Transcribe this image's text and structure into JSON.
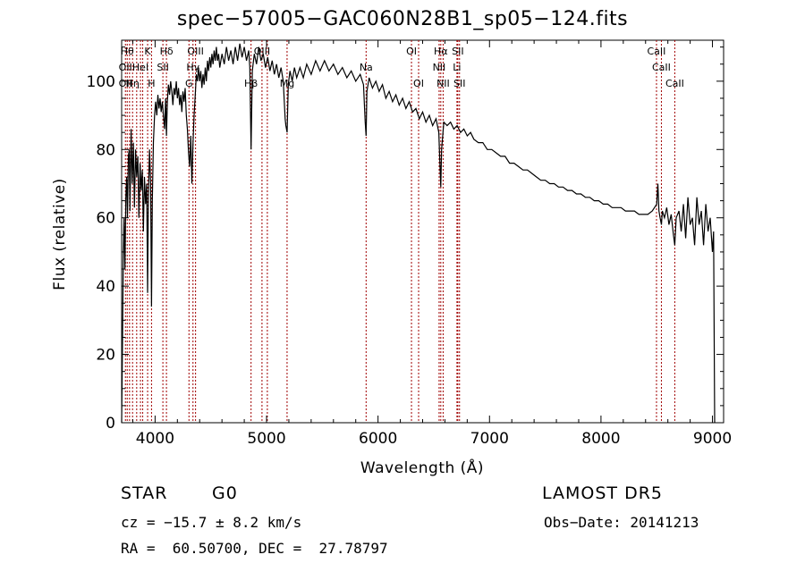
{
  "chart_data": {
    "type": "line",
    "title": "spec−57005−GAC060N28B1_sp05−124.fits",
    "xlabel": "Wavelength (Å)",
    "ylabel": "Flux (relative)",
    "xlim": [
      3700,
      9100
    ],
    "ylim": [
      0,
      112
    ],
    "x_ticks": [
      4000,
      5000,
      6000,
      7000,
      8000,
      9000
    ],
    "y_ticks": [
      0,
      20,
      40,
      60,
      80,
      100
    ],
    "grid": false,
    "series": [
      {
        "color": "#000000",
        "points": [
          [
            3700,
            0
          ],
          [
            3708,
            25
          ],
          [
            3715,
            50
          ],
          [
            3722,
            60
          ],
          [
            3730,
            45
          ],
          [
            3738,
            66
          ],
          [
            3745,
            72
          ],
          [
            3752,
            60
          ],
          [
            3760,
            78
          ],
          [
            3768,
            80
          ],
          [
            3775,
            62
          ],
          [
            3785,
            86
          ],
          [
            3795,
            70
          ],
          [
            3805,
            82
          ],
          [
            3815,
            63
          ],
          [
            3825,
            80
          ],
          [
            3835,
            72
          ],
          [
            3845,
            78
          ],
          [
            3855,
            60
          ],
          [
            3865,
            76
          ],
          [
            3875,
            68
          ],
          [
            3885,
            74
          ],
          [
            3895,
            56
          ],
          [
            3905,
            72
          ],
          [
            3915,
            64
          ],
          [
            3925,
            70
          ],
          [
            3933,
            38
          ],
          [
            3940,
            66
          ],
          [
            3950,
            80
          ],
          [
            3960,
            70
          ],
          [
            3968,
            34
          ],
          [
            3975,
            65
          ],
          [
            3985,
            82
          ],
          [
            3995,
            90
          ],
          [
            4005,
            94
          ],
          [
            4015,
            90
          ],
          [
            4025,
            96
          ],
          [
            4035,
            92
          ],
          [
            4045,
            95
          ],
          [
            4055,
            91
          ],
          [
            4065,
            94
          ],
          [
            4075,
            90
          ],
          [
            4085,
            86
          ],
          [
            4095,
            95
          ],
          [
            4102,
            84
          ],
          [
            4110,
            94
          ],
          [
            4120,
            99
          ],
          [
            4130,
            96
          ],
          [
            4140,
            100
          ],
          [
            4150,
            97
          ],
          [
            4160,
            93
          ],
          [
            4170,
            98
          ],
          [
            4180,
            96
          ],
          [
            4190,
            100
          ],
          [
            4200,
            95
          ],
          [
            4210,
            98
          ],
          [
            4220,
            93
          ],
          [
            4230,
            96
          ],
          [
            4240,
            91
          ],
          [
            4250,
            97
          ],
          [
            4260,
            94
          ],
          [
            4270,
            98
          ],
          [
            4280,
            90
          ],
          [
            4290,
            86
          ],
          [
            4300,
            79
          ],
          [
            4310,
            75
          ],
          [
            4320,
            84
          ],
          [
            4330,
            70
          ],
          [
            4340,
            82
          ],
          [
            4350,
            90
          ],
          [
            4360,
            96
          ],
          [
            4370,
            102
          ],
          [
            4380,
            100
          ],
          [
            4390,
            104
          ],
          [
            4400,
            100
          ],
          [
            4410,
            103
          ],
          [
            4420,
            98
          ],
          [
            4430,
            102
          ],
          [
            4440,
            99
          ],
          [
            4450,
            104
          ],
          [
            4460,
            100
          ],
          [
            4470,
            106
          ],
          [
            4480,
            103
          ],
          [
            4490,
            107
          ],
          [
            4500,
            104
          ],
          [
            4510,
            108
          ],
          [
            4520,
            105
          ],
          [
            4530,
            109
          ],
          [
            4540,
            106
          ],
          [
            4550,
            110
          ],
          [
            4560,
            106
          ],
          [
            4570,
            108
          ],
          [
            4580,
            104
          ],
          [
            4600,
            108
          ],
          [
            4620,
            105
          ],
          [
            4640,
            110
          ],
          [
            4660,
            106
          ],
          [
            4680,
            109
          ],
          [
            4700,
            105
          ],
          [
            4720,
            110
          ],
          [
            4740,
            106
          ],
          [
            4760,
            111
          ],
          [
            4780,
            107
          ],
          [
            4800,
            110
          ],
          [
            4820,
            106
          ],
          [
            4840,
            109
          ],
          [
            4850,
            104
          ],
          [
            4861,
            80
          ],
          [
            4872,
            103
          ],
          [
            4890,
            108
          ],
          [
            4910,
            105
          ],
          [
            4930,
            110
          ],
          [
            4950,
            106
          ],
          [
            4970,
            108
          ],
          [
            4990,
            104
          ],
          [
            5010,
            107
          ],
          [
            5030,
            103
          ],
          [
            5050,
            106
          ],
          [
            5070,
            102
          ],
          [
            5090,
            105
          ],
          [
            5110,
            101
          ],
          [
            5130,
            104
          ],
          [
            5150,
            100
          ],
          [
            5167,
            89
          ],
          [
            5173,
            87
          ],
          [
            5184,
            85
          ],
          [
            5195,
            99
          ],
          [
            5210,
            103
          ],
          [
            5230,
            100
          ],
          [
            5250,
            104
          ],
          [
            5270,
            101
          ],
          [
            5300,
            104
          ],
          [
            5330,
            101
          ],
          [
            5360,
            105
          ],
          [
            5400,
            102
          ],
          [
            5440,
            106
          ],
          [
            5480,
            103
          ],
          [
            5520,
            106
          ],
          [
            5560,
            103
          ],
          [
            5600,
            105
          ],
          [
            5640,
            102
          ],
          [
            5680,
            104
          ],
          [
            5720,
            101
          ],
          [
            5760,
            103
          ],
          [
            5800,
            100
          ],
          [
            5840,
            102
          ],
          [
            5870,
            99
          ],
          [
            5885,
            88
          ],
          [
            5893,
            84
          ],
          [
            5900,
            97
          ],
          [
            5920,
            101
          ],
          [
            5950,
            98
          ],
          [
            5980,
            100
          ],
          [
            6010,
            97
          ],
          [
            6040,
            99
          ],
          [
            6070,
            95
          ],
          [
            6100,
            97
          ],
          [
            6130,
            94
          ],
          [
            6160,
            96
          ],
          [
            6190,
            93
          ],
          [
            6220,
            95
          ],
          [
            6250,
            92
          ],
          [
            6280,
            94
          ],
          [
            6310,
            91
          ],
          [
            6340,
            92
          ],
          [
            6370,
            89
          ],
          [
            6400,
            91
          ],
          [
            6430,
            88
          ],
          [
            6460,
            90
          ],
          [
            6490,
            87
          ],
          [
            6520,
            89
          ],
          [
            6545,
            85
          ],
          [
            6555,
            76
          ],
          [
            6563,
            69
          ],
          [
            6570,
            80
          ],
          [
            6590,
            88
          ],
          [
            6620,
            87
          ],
          [
            6650,
            88
          ],
          [
            6680,
            86
          ],
          [
            6710,
            87
          ],
          [
            6740,
            85
          ],
          [
            6770,
            86
          ],
          [
            6800,
            84
          ],
          [
            6830,
            85
          ],
          [
            6860,
            83
          ],
          [
            6900,
            82
          ],
          [
            6940,
            82
          ],
          [
            6980,
            80
          ],
          [
            7020,
            80
          ],
          [
            7060,
            79
          ],
          [
            7100,
            78
          ],
          [
            7140,
            78
          ],
          [
            7180,
            76
          ],
          [
            7220,
            76
          ],
          [
            7260,
            75
          ],
          [
            7300,
            74
          ],
          [
            7340,
            74
          ],
          [
            7380,
            73
          ],
          [
            7420,
            72
          ],
          [
            7460,
            71
          ],
          [
            7500,
            71
          ],
          [
            7540,
            70
          ],
          [
            7580,
            70
          ],
          [
            7620,
            69
          ],
          [
            7660,
            69
          ],
          [
            7700,
            68
          ],
          [
            7740,
            68
          ],
          [
            7780,
            67
          ],
          [
            7820,
            67
          ],
          [
            7860,
            66
          ],
          [
            7900,
            66
          ],
          [
            7940,
            65
          ],
          [
            7980,
            65
          ],
          [
            8020,
            64
          ],
          [
            8060,
            64
          ],
          [
            8100,
            63
          ],
          [
            8140,
            63
          ],
          [
            8180,
            63
          ],
          [
            8220,
            62
          ],
          [
            8260,
            62
          ],
          [
            8300,
            62
          ],
          [
            8340,
            61
          ],
          [
            8380,
            61
          ],
          [
            8420,
            61
          ],
          [
            8460,
            62
          ],
          [
            8480,
            63
          ],
          [
            8500,
            64
          ],
          [
            8510,
            70
          ],
          [
            8520,
            62
          ],
          [
            8530,
            60
          ],
          [
            8542,
            58
          ],
          [
            8550,
            62
          ],
          [
            8570,
            60
          ],
          [
            8590,
            63
          ],
          [
            8610,
            58
          ],
          [
            8630,
            61
          ],
          [
            8650,
            55
          ],
          [
            8662,
            52
          ],
          [
            8675,
            60
          ],
          [
            8700,
            62
          ],
          [
            8720,
            56
          ],
          [
            8740,
            64
          ],
          [
            8760,
            54
          ],
          [
            8780,
            66
          ],
          [
            8800,
            58
          ],
          [
            8820,
            60
          ],
          [
            8840,
            52
          ],
          [
            8860,
            66
          ],
          [
            8880,
            58
          ],
          [
            8900,
            62
          ],
          [
            8920,
            52
          ],
          [
            8940,
            64
          ],
          [
            8960,
            56
          ],
          [
            8980,
            60
          ],
          [
            9000,
            50
          ],
          [
            9010,
            56
          ],
          [
            9020,
            0
          ]
        ]
      }
    ],
    "line_color": "#000000",
    "marker_color": "#a00000",
    "lines": [
      {
        "x": 3734,
        "labels": [
          {
            "text": "OII",
            "row": 1
          },
          {
            "text": "OII",
            "row": 2
          }
        ]
      },
      {
        "x": 3750,
        "labels": [
          {
            "text": "Hθ",
            "row": 0
          }
        ]
      },
      {
        "x": 3771,
        "labels": []
      },
      {
        "x": 3798,
        "labels": [
          {
            "text": "Hη",
            "row": 2
          }
        ]
      },
      {
        "x": 3835,
        "labels": []
      },
      {
        "x": 3869,
        "labels": [
          {
            "text": "HeI",
            "row": 1
          }
        ]
      },
      {
        "x": 3889,
        "labels": []
      },
      {
        "x": 3933,
        "labels": [
          {
            "text": "K",
            "row": 0
          }
        ]
      },
      {
        "x": 3968,
        "labels": [
          {
            "text": "H",
            "row": 2
          }
        ]
      },
      {
        "x": 4070,
        "labels": [
          {
            "text": "SII",
            "row": 1
          }
        ]
      },
      {
        "x": 4102,
        "labels": [
          {
            "text": "Hδ",
            "row": 0
          }
        ]
      },
      {
        "x": 4304,
        "labels": [
          {
            "text": "G",
            "row": 2
          }
        ]
      },
      {
        "x": 4340,
        "labels": [
          {
            "text": "Hγ",
            "row": 1
          }
        ]
      },
      {
        "x": 4363,
        "labels": [
          {
            "text": "OIII",
            "row": 0
          }
        ]
      },
      {
        "x": 4861,
        "labels": [
          {
            "text": "Hβ",
            "row": 2
          }
        ]
      },
      {
        "x": 4959,
        "labels": [
          {
            "text": "OIII",
            "row": 0
          }
        ]
      },
      {
        "x": 5007,
        "labels": []
      },
      {
        "x": 5184,
        "labels": [
          {
            "text": "Mg",
            "row": 2
          }
        ]
      },
      {
        "x": 5893,
        "labels": [
          {
            "text": "Na",
            "row": 1
          }
        ]
      },
      {
        "x": 6300,
        "labels": [
          {
            "text": "OI",
            "row": 0
          }
        ]
      },
      {
        "x": 6364,
        "labels": [
          {
            "text": "OI",
            "row": 2
          }
        ]
      },
      {
        "x": 6548,
        "labels": [
          {
            "text": "NII",
            "row": 1
          }
        ]
      },
      {
        "x": 6563,
        "labels": [
          {
            "text": "Hα",
            "row": 0
          }
        ]
      },
      {
        "x": 6584,
        "labels": [
          {
            "text": "NII",
            "row": 2
          }
        ]
      },
      {
        "x": 6708,
        "labels": [
          {
            "text": "Li",
            "row": 1
          }
        ]
      },
      {
        "x": 6716,
        "labels": [
          {
            "text": "SII",
            "row": 0
          }
        ]
      },
      {
        "x": 6731,
        "labels": [
          {
            "text": "SII",
            "row": 2
          }
        ]
      },
      {
        "x": 8498,
        "labels": [
          {
            "text": "CaII",
            "row": 0
          }
        ]
      },
      {
        "x": 8542,
        "labels": [
          {
            "text": "CaII",
            "row": 1
          }
        ]
      },
      {
        "x": 8662,
        "labels": [
          {
            "text": "CaII",
            "row": 2
          }
        ]
      }
    ]
  },
  "info": {
    "object_class": "STAR",
    "subclass": "G0",
    "survey": "LAMOST DR5",
    "cz": "cz = −15.7 ± 8.2 km/s",
    "obs_date": "Obs−Date: 20141213",
    "coords": "RA =  60.50700, DEC =  27.78797"
  }
}
